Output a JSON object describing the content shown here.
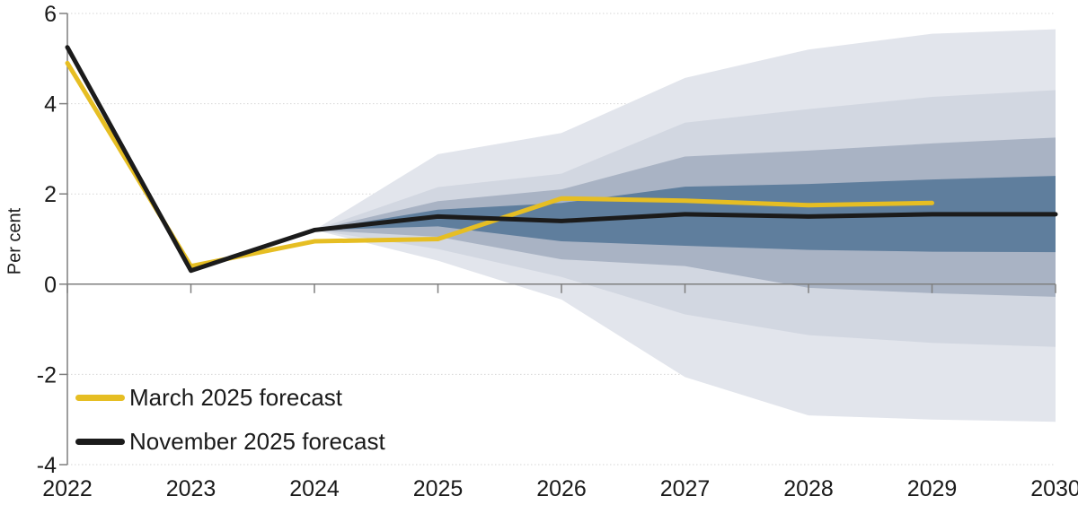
{
  "chart_data": {
    "type": "area",
    "subtype": "fan-chart-with-forecast-lines",
    "title": "",
    "ylabel": "Per cent",
    "xlim": [
      2022,
      2030
    ],
    "ylim": [
      -4,
      6
    ],
    "x_tick_values": [
      2022,
      2023,
      2024,
      2025,
      2026,
      2027,
      2028,
      2029,
      2030
    ],
    "x_tick_labels": [
      "2022",
      "2023",
      "2024",
      "2025",
      "2026",
      "2027",
      "2028",
      "2029",
      "2030"
    ],
    "y_tick_values": [
      6,
      4,
      2,
      0,
      -2,
      -4
    ],
    "y_tick_labels": [
      "6",
      "4",
      "2",
      "0",
      "-2",
      "-4"
    ],
    "grid": "faint dotted horizontal gridlines at 6, 4, 2, -2, -4; solid grey zero line with year ticks",
    "legend_position": "inside bottom-left",
    "series": [
      {
        "name": "March 2025 forecast",
        "color": "#E6BE23",
        "x": [
          2022,
          2023,
          2024,
          2025,
          2026,
          2027,
          2028,
          2029
        ],
        "values": [
          4.9,
          0.4,
          0.95,
          1.0,
          1.9,
          1.85,
          1.75,
          1.8
        ]
      },
      {
        "name": "November 2025 forecast",
        "color": "#1B1B1B",
        "x": [
          2022,
          2023,
          2024,
          2025,
          2026,
          2027,
          2028,
          2029,
          2030
        ],
        "values": [
          5.25,
          0.3,
          1.2,
          1.5,
          1.4,
          1.55,
          1.5,
          1.55,
          1.55
        ]
      }
    ],
    "fan_bands": {
      "x": [
        2024,
        2025,
        2026,
        2027,
        2028,
        2029,
        2030
      ],
      "bands": [
        {
          "name": "outermost",
          "color": "#E2E5EC",
          "top": [
            1.2,
            2.88,
            3.35,
            4.57,
            5.2,
            5.55,
            5.65
          ],
          "bottom": [
            1.2,
            0.52,
            -0.34,
            -2.06,
            -2.91,
            -3.0,
            -3.05
          ]
        },
        {
          "name": "outer-mid",
          "color": "#D2D7E1",
          "top": [
            1.2,
            2.15,
            2.45,
            3.58,
            3.88,
            4.15,
            4.3
          ],
          "bottom": [
            1.2,
            0.78,
            0.16,
            -0.67,
            -1.13,
            -1.3,
            -1.39
          ]
        },
        {
          "name": "inner-mid",
          "color": "#A9B3C4",
          "top": [
            1.2,
            1.84,
            2.1,
            2.83,
            2.96,
            3.12,
            3.25
          ],
          "bottom": [
            1.2,
            1.05,
            0.55,
            0.4,
            -0.08,
            -0.2,
            -0.28
          ]
        },
        {
          "name": "innermost",
          "color": "#5F7E9D",
          "top": [
            1.2,
            1.65,
            1.8,
            2.16,
            2.22,
            2.32,
            2.4
          ],
          "bottom": [
            1.2,
            1.28,
            0.95,
            0.85,
            0.76,
            0.72,
            0.71
          ]
        }
      ]
    }
  },
  "legend": {
    "items": [
      {
        "label": "March 2025 forecast",
        "color": "#E6BE23"
      },
      {
        "label": "November 2025 forecast",
        "color": "#1B1B1B"
      }
    ]
  }
}
